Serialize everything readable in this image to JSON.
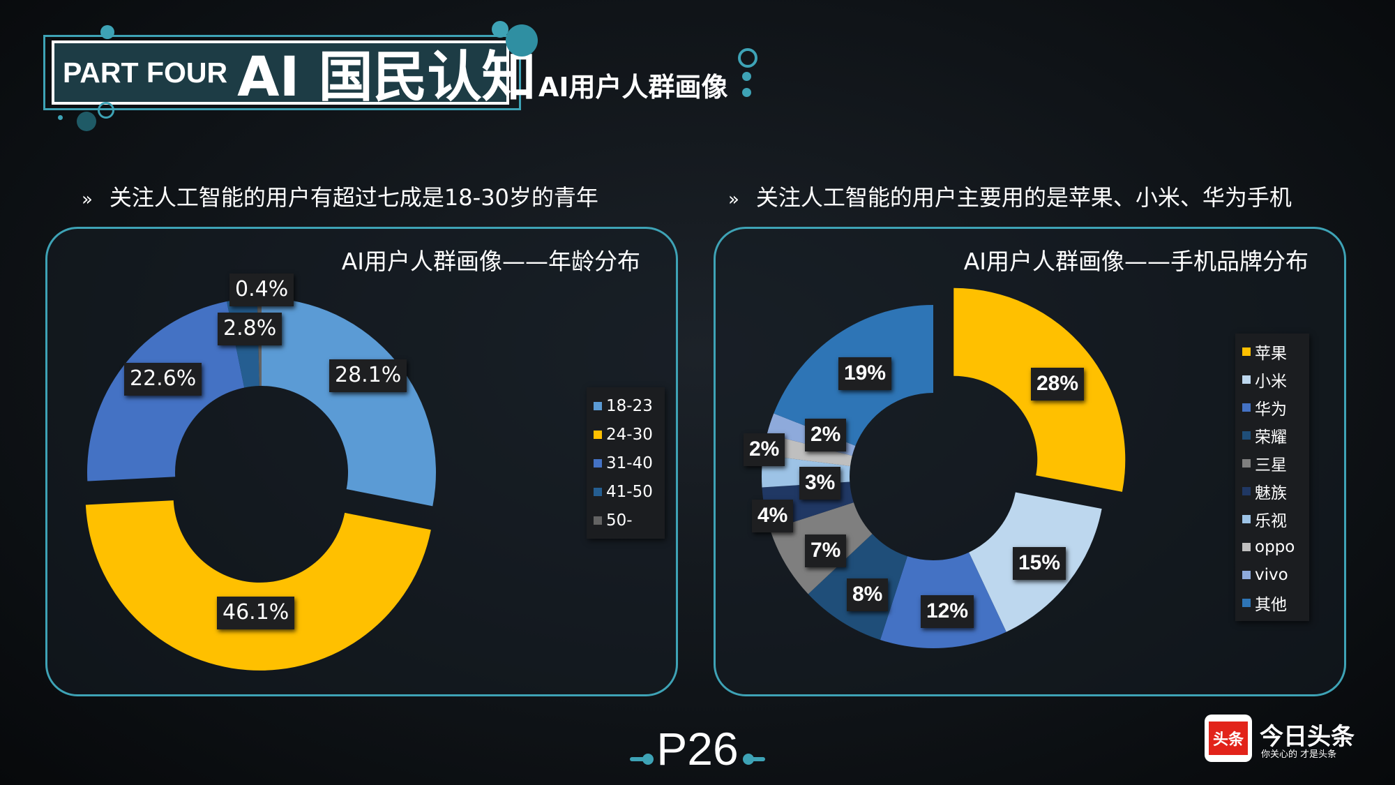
{
  "header": {
    "part_label": "PART FOUR",
    "section_title": "AI 国民认知",
    "subtitle": "AI用户人群画像"
  },
  "bullets": {
    "marker": "»",
    "left": "关注人工智能的用户有超过七成是18-30岁的青年",
    "right": "关注人工智能的用户主要用的是苹果、小米、华为手机"
  },
  "colors": {
    "accent": "#3ea3b6",
    "panel_border": "#3ea3b6"
  },
  "chart_data": [
    {
      "type": "pie",
      "variant": "donut",
      "title": "AI用户人群画像——年龄分布",
      "categories": [
        "18-23",
        "24-30",
        "31-40",
        "41-50",
        "50-"
      ],
      "values": [
        28.1,
        46.1,
        22.6,
        2.8,
        0.4
      ],
      "labels": [
        "28.1%",
        "46.1%",
        "22.6%",
        "2.8%",
        "0.4%"
      ],
      "colors": [
        "#5b9bd5",
        "#ffc000",
        "#4472c4",
        "#255e91",
        "#636363"
      ],
      "exploded": "24-30",
      "legend_position": "right"
    },
    {
      "type": "pie",
      "variant": "donut",
      "title": "AI用户人群画像——手机品牌分布",
      "categories": [
        "苹果",
        "小米",
        "华为",
        "荣耀",
        "三星",
        "魅族",
        "乐视",
        "oppo",
        "vivo",
        "其他"
      ],
      "values": [
        28,
        15,
        12,
        8,
        7,
        4,
        3,
        2,
        2,
        19
      ],
      "labels": [
        "28%",
        "15%",
        "12%",
        "8%",
        "7%",
        "4%",
        "3%",
        "2%",
        "2%",
        "19%"
      ],
      "colors": [
        "#ffc000",
        "#bdd7ee",
        "#4472c4",
        "#1f4e79",
        "#7f7f7f",
        "#203864",
        "#9dc3e6",
        "#bfbfbf",
        "#8eaadb",
        "#2e75b6"
      ],
      "exploded": "苹果",
      "legend_position": "right"
    }
  ],
  "footer": {
    "page_number": "P26",
    "logo_mark": "头条",
    "logo_name": "今日头条",
    "logo_slogan": "你关心的 才是头条"
  }
}
